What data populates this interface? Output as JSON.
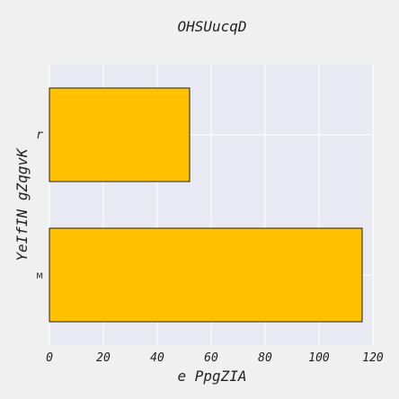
{
  "chart_data": {
    "type": "bar",
    "orientation": "horizontal",
    "title": "OHSUucqD",
    "xlabel": "e PpgZIA",
    "ylabel": "YeIfIN gZqgvK",
    "categories": [
      "r",
      "M"
    ],
    "values": [
      52,
      116
    ],
    "xlim": [
      0,
      120
    ],
    "xticks": [
      0,
      20,
      40,
      60,
      80,
      100,
      120
    ],
    "grid": true,
    "legend": "none",
    "bar_color": "#ffc000",
    "bar_edge_color": "#222222",
    "plot_background": "#e9e9f3",
    "grid_color": "#ffffff"
  }
}
